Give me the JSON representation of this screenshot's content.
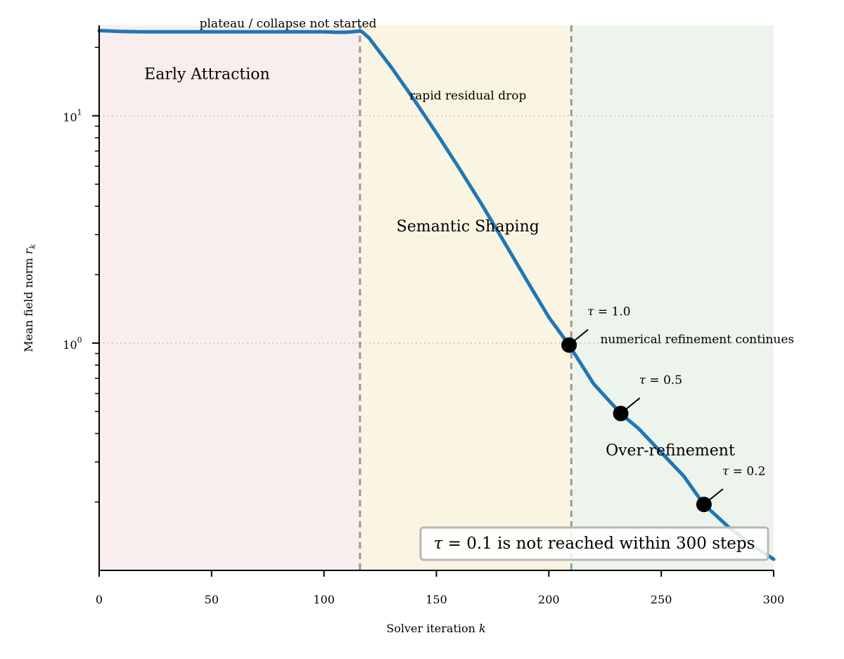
{
  "chart_data": {
    "type": "line",
    "title": "",
    "xlabel": "Solver iteration",
    "xlabel_var": "k",
    "ylabel": "Mean field norm",
    "ylabel_var": "r",
    "ylabel_sub": "k",
    "xlim": [
      0,
      300
    ],
    "ylim": [
      0.1,
      25
    ],
    "y_scale": "log",
    "xticks": [
      0,
      50,
      100,
      150,
      200,
      250,
      300
    ],
    "yticks": [
      {
        "base": "10",
        "exp": "0",
        "value": 1
      },
      {
        "base": "10",
        "exp": "1",
        "value": 10
      }
    ],
    "grid": "horizontal dotted at major y ticks",
    "phases": [
      {
        "label": "Early Attraction",
        "from": 0,
        "to": 116,
        "color": "#f9eeee",
        "label_x": 48,
        "label_y": 14.5
      },
      {
        "label": "Semantic Shaping",
        "from": 116,
        "to": 210,
        "color": "#faf4e3",
        "label_x": 164,
        "label_y": 3.1
      },
      {
        "label": "Over-refinement",
        "from": 210,
        "to": 300,
        "color": "#edf4ec",
        "label_x": 254,
        "label_y": 0.32
      }
    ],
    "phase_boundaries": [
      116,
      210
    ],
    "series": [
      {
        "color": "#1f77b4",
        "x": [
          0,
          10,
          20,
          40,
          60,
          80,
          100,
          105,
          110,
          114,
          116,
          117,
          120,
          130,
          140,
          150,
          160,
          170,
          180,
          190,
          200,
          209,
          215,
          220,
          232,
          240,
          250,
          260,
          269,
          280,
          290,
          300
        ],
        "y": [
          23.7,
          23.5,
          23.4,
          23.4,
          23.4,
          23.4,
          23.4,
          23.3,
          23.3,
          23.5,
          23.6,
          23.4,
          22.0,
          16.3,
          11.8,
          8.4,
          5.9,
          4.1,
          2.8,
          1.9,
          1.3,
          0.98,
          0.79,
          0.66,
          0.49,
          0.42,
          0.33,
          0.26,
          0.195,
          0.155,
          0.13,
          0.112
        ]
      }
    ],
    "markers": [
      {
        "x": 209,
        "y": 0.98,
        "label_var": "τ",
        "label_eq": " = 1.0"
      },
      {
        "x": 232,
        "y": 0.49,
        "label_var": "τ",
        "label_eq": " = 0.5"
      },
      {
        "x": 269,
        "y": 0.195,
        "label_var": "τ",
        "label_eq": " = 0.2"
      }
    ],
    "annotations": [
      {
        "text": "plateau / collapse not started",
        "x": 84,
        "y": 24.5
      },
      {
        "text": "rapid residual drop",
        "x": 164,
        "y": 11.8
      },
      {
        "text": "numerical refinement continues",
        "x": 266,
        "y": 1.0
      }
    ],
    "note_box": {
      "var": "τ",
      "text": " = 0.1 is not reached within 300 steps"
    }
  }
}
